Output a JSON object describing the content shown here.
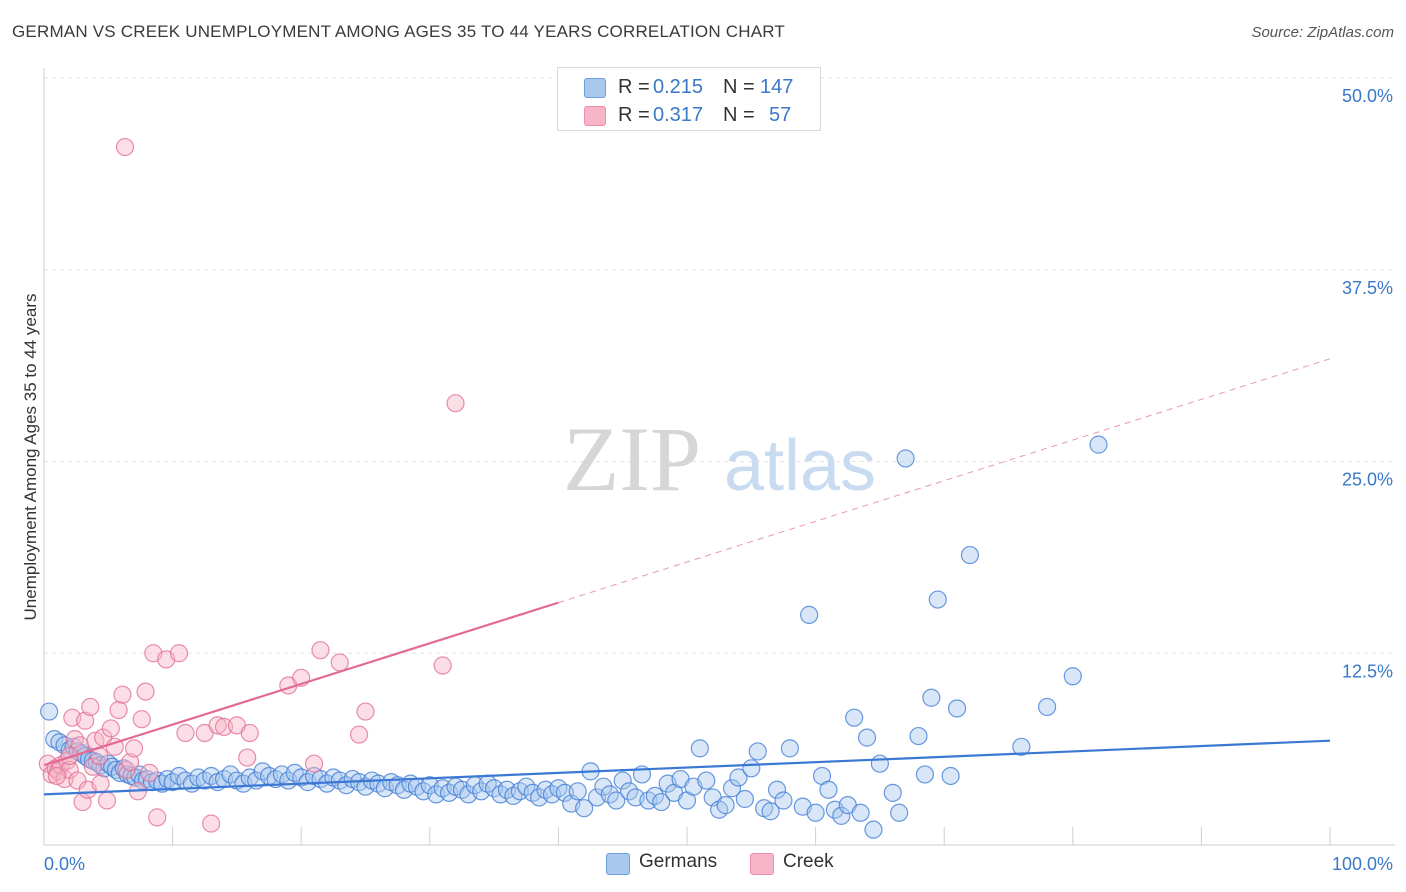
{
  "title": "GERMAN VS CREEK UNEMPLOYMENT AMONG AGES 35 TO 44 YEARS CORRELATION CHART",
  "source": "Source: ZipAtlas.com",
  "watermark": {
    "zip": "ZIP",
    "atlas": "atlas"
  },
  "stats": [
    {
      "r_label": "R =",
      "r_value": "0.215",
      "n_label": "N =",
      "n_value": "147",
      "color": "#a9c8ee"
    },
    {
      "r_label": "R =",
      "r_value": "0.317",
      "n_label": "N =",
      "n_value": "57",
      "color": "#f6b6c8"
    }
  ],
  "legend": [
    {
      "label": "Germans",
      "color": "#a9c8ee"
    },
    {
      "label": "Creek",
      "color": "#f6b6c8"
    }
  ],
  "chart_data": {
    "type": "scatter",
    "ylabel": "Unemployment Among Ages 35 to 44 years",
    "xlabel": "",
    "x_axis": {
      "min": 0,
      "max": 100,
      "tick_labels": [
        "0.0%",
        "100.0%"
      ]
    },
    "y_axis": {
      "min": 0,
      "max": 50,
      "ticks": [
        12.5,
        25.0,
        37.5,
        50.0
      ],
      "tick_labels": [
        "12.5%",
        "25.0%",
        "37.5%",
        "50.0%"
      ]
    },
    "grid": true,
    "series": [
      {
        "name": "Germans",
        "color": "#3a78d4",
        "fill": "#a9c8ee",
        "trend": {
          "x0": 0,
          "y0": 3.3,
          "x1": 100,
          "y1": 6.8,
          "style": "solid"
        },
        "points": [
          [
            0.4,
            8.7
          ],
          [
            0.8,
            6.9
          ],
          [
            1.2,
            6.7
          ],
          [
            1.6,
            6.5
          ],
          [
            2.0,
            6.2
          ],
          [
            2.3,
            6.4
          ],
          [
            2.6,
            6.1
          ],
          [
            2.9,
            6.0
          ],
          [
            3.2,
            5.8
          ],
          [
            3.5,
            5.6
          ],
          [
            3.8,
            5.5
          ],
          [
            4.1,
            5.4
          ],
          [
            4.4,
            5.2
          ],
          [
            4.7,
            5.0
          ],
          [
            5.0,
            5.3
          ],
          [
            5.3,
            5.1
          ],
          [
            5.6,
            4.9
          ],
          [
            5.9,
            4.7
          ],
          [
            6.2,
            5.0
          ],
          [
            6.5,
            4.6
          ],
          [
            6.8,
            4.5
          ],
          [
            7.1,
            4.4
          ],
          [
            7.4,
            4.6
          ],
          [
            7.7,
            4.2
          ],
          [
            8.0,
            4.3
          ],
          [
            8.4,
            4.1
          ],
          [
            8.8,
            4.2
          ],
          [
            9.2,
            4.0
          ],
          [
            9.6,
            4.3
          ],
          [
            10.0,
            4.1
          ],
          [
            10.5,
            4.5
          ],
          [
            11.0,
            4.2
          ],
          [
            11.5,
            4.0
          ],
          [
            12.0,
            4.4
          ],
          [
            12.5,
            4.2
          ],
          [
            13.0,
            4.5
          ],
          [
            13.5,
            4.1
          ],
          [
            14.0,
            4.3
          ],
          [
            14.5,
            4.6
          ],
          [
            15.0,
            4.2
          ],
          [
            15.5,
            4.0
          ],
          [
            16.0,
            4.4
          ],
          [
            16.5,
            4.2
          ],
          [
            17.0,
            4.8
          ],
          [
            17.5,
            4.5
          ],
          [
            18.0,
            4.3
          ],
          [
            18.5,
            4.6
          ],
          [
            19.0,
            4.2
          ],
          [
            19.5,
            4.7
          ],
          [
            20.0,
            4.4
          ],
          [
            20.5,
            4.1
          ],
          [
            21.0,
            4.5
          ],
          [
            21.5,
            4.3
          ],
          [
            22.0,
            4.0
          ],
          [
            22.5,
            4.4
          ],
          [
            23.0,
            4.2
          ],
          [
            23.5,
            3.9
          ],
          [
            24.0,
            4.3
          ],
          [
            24.5,
            4.1
          ],
          [
            25.0,
            3.8
          ],
          [
            25.5,
            4.2
          ],
          [
            26.0,
            4.0
          ],
          [
            26.5,
            3.7
          ],
          [
            27.0,
            4.1
          ],
          [
            27.5,
            3.9
          ],
          [
            28.0,
            3.6
          ],
          [
            28.5,
            4.0
          ],
          [
            29.0,
            3.8
          ],
          [
            29.5,
            3.5
          ],
          [
            30.0,
            3.9
          ],
          [
            30.5,
            3.3
          ],
          [
            31.0,
            3.7
          ],
          [
            31.5,
            3.4
          ],
          [
            32.0,
            3.8
          ],
          [
            32.5,
            3.6
          ],
          [
            33.0,
            3.3
          ],
          [
            33.5,
            3.9
          ],
          [
            34.0,
            3.5
          ],
          [
            34.5,
            4.0
          ],
          [
            35.0,
            3.7
          ],
          [
            35.5,
            3.3
          ],
          [
            36.0,
            3.6
          ],
          [
            36.5,
            3.2
          ],
          [
            37.0,
            3.5
          ],
          [
            37.5,
            3.8
          ],
          [
            38.0,
            3.4
          ],
          [
            38.5,
            3.1
          ],
          [
            39.0,
            3.6
          ],
          [
            39.5,
            3.3
          ],
          [
            40.0,
            3.7
          ],
          [
            40.5,
            3.4
          ],
          [
            41.0,
            2.7
          ],
          [
            41.5,
            3.5
          ],
          [
            42.0,
            2.4
          ],
          [
            42.5,
            4.8
          ],
          [
            43.0,
            3.1
          ],
          [
            43.5,
            3.8
          ],
          [
            44.0,
            3.3
          ],
          [
            44.5,
            2.9
          ],
          [
            45.0,
            4.2
          ],
          [
            45.5,
            3.5
          ],
          [
            46.0,
            3.1
          ],
          [
            46.5,
            4.6
          ],
          [
            47.0,
            2.9
          ],
          [
            47.5,
            3.2
          ],
          [
            48.0,
            2.8
          ],
          [
            48.5,
            4.0
          ],
          [
            49.0,
            3.4
          ],
          [
            49.5,
            4.3
          ],
          [
            50.0,
            2.9
          ],
          [
            50.5,
            3.8
          ],
          [
            51.0,
            6.3
          ],
          [
            51.5,
            4.2
          ],
          [
            52.0,
            3.1
          ],
          [
            52.5,
            2.3
          ],
          [
            53.0,
            2.6
          ],
          [
            53.5,
            3.7
          ],
          [
            54.0,
            4.4
          ],
          [
            54.5,
            3.0
          ],
          [
            55.0,
            5.0
          ],
          [
            55.5,
            6.1
          ],
          [
            56.0,
            2.4
          ],
          [
            56.5,
            2.2
          ],
          [
            57.0,
            3.6
          ],
          [
            57.5,
            2.9
          ],
          [
            58.0,
            6.3
          ],
          [
            59.0,
            2.5
          ],
          [
            59.5,
            15.0
          ],
          [
            60.0,
            2.1
          ],
          [
            60.5,
            4.5
          ],
          [
            61.0,
            3.6
          ],
          [
            61.5,
            2.3
          ],
          [
            62.0,
            1.9
          ],
          [
            62.5,
            2.6
          ],
          [
            63.0,
            8.3
          ],
          [
            63.5,
            2.1
          ],
          [
            64.0,
            7.0
          ],
          [
            64.5,
            1.0
          ],
          [
            65.0,
            5.3
          ],
          [
            66.0,
            3.4
          ],
          [
            66.5,
            2.1
          ],
          [
            67.0,
            25.2
          ],
          [
            68.0,
            7.1
          ],
          [
            68.5,
            4.6
          ],
          [
            69.0,
            9.6
          ],
          [
            69.5,
            16.0
          ],
          [
            70.5,
            4.5
          ],
          [
            71.0,
            8.9
          ],
          [
            72.0,
            18.9
          ],
          [
            76.0,
            6.4
          ],
          [
            78.0,
            9.0
          ],
          [
            80.0,
            11.0
          ],
          [
            82.0,
            26.1
          ]
        ]
      },
      {
        "name": "Creek",
        "color": "#e26a93",
        "fill": "#f6b6c8",
        "trend": {
          "x0": 0,
          "y0": 5.2,
          "x1": 40,
          "y1": 15.8,
          "style": "solid",
          "extend_x1": 100,
          "extend_y1": 31.7,
          "extend_style": "dashed"
        },
        "points": [
          [
            0.3,
            5.3
          ],
          [
            0.6,
            4.6
          ],
          [
            0.9,
            5.0
          ],
          [
            1.1,
            4.8
          ],
          [
            1.3,
            5.2
          ],
          [
            1.6,
            4.3
          ],
          [
            1.8,
            5.5
          ],
          [
            2.0,
            4.9
          ],
          [
            2.2,
            8.3
          ],
          [
            2.4,
            6.9
          ],
          [
            2.6,
            4.2
          ],
          [
            2.8,
            6.5
          ],
          [
            3.0,
            2.8
          ],
          [
            3.2,
            8.1
          ],
          [
            3.4,
            3.6
          ],
          [
            3.6,
            9.0
          ],
          [
            3.8,
            5.1
          ],
          [
            4.0,
            6.8
          ],
          [
            4.3,
            5.8
          ],
          [
            4.6,
            7.0
          ],
          [
            4.9,
            2.9
          ],
          [
            5.2,
            7.6
          ],
          [
            5.5,
            6.4
          ],
          [
            5.8,
            8.8
          ],
          [
            6.1,
            9.8
          ],
          [
            6.4,
            4.9
          ],
          [
            6.7,
            5.4
          ],
          [
            7.0,
            6.3
          ],
          [
            7.3,
            3.5
          ],
          [
            7.6,
            8.2
          ],
          [
            7.9,
            10.0
          ],
          [
            8.2,
            4.7
          ],
          [
            8.5,
            12.5
          ],
          [
            8.8,
            1.8
          ],
          [
            9.5,
            12.1
          ],
          [
            10.5,
            12.5
          ],
          [
            11.0,
            7.3
          ],
          [
            12.5,
            7.3
          ],
          [
            13.0,
            1.4
          ],
          [
            13.5,
            7.8
          ],
          [
            14.0,
            7.7
          ],
          [
            15.0,
            7.8
          ],
          [
            15.8,
            5.7
          ],
          [
            16.0,
            7.3
          ],
          [
            19.0,
            10.4
          ],
          [
            20.0,
            10.9
          ],
          [
            21.0,
            5.3
          ],
          [
            21.5,
            12.7
          ],
          [
            23.0,
            11.9
          ],
          [
            24.5,
            7.2
          ],
          [
            25.0,
            8.7
          ],
          [
            31.0,
            11.7
          ],
          [
            32.0,
            28.8
          ],
          [
            6.3,
            45.5
          ],
          [
            1.0,
            4.5
          ],
          [
            2.0,
            5.8
          ],
          [
            4.4,
            4.0
          ]
        ]
      }
    ]
  }
}
